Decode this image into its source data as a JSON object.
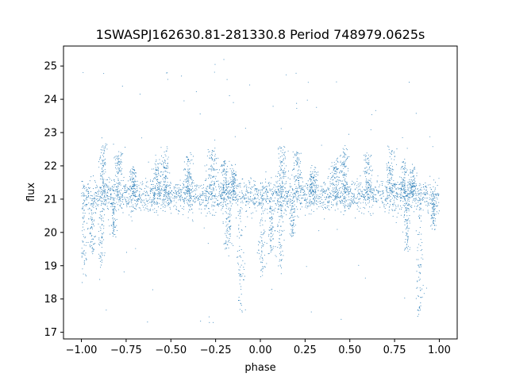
{
  "chart_data": {
    "type": "scatter",
    "title": "1SWASPJ162630.81-281330.8 Period 748979.0625s",
    "xlabel": "phase",
    "ylabel": "flux",
    "xlim": [
      -1.1,
      1.1
    ],
    "ylim": [
      16.8,
      25.6
    ],
    "x_ticks": [
      -1.0,
      -0.75,
      -0.5,
      -0.25,
      0.0,
      0.25,
      0.5,
      0.75,
      1.0
    ],
    "x_tick_labels": [
      "−1.00",
      "−0.75",
      "−0.50",
      "−0.25",
      "0.00",
      "0.25",
      "0.50",
      "0.75",
      "1.00"
    ],
    "y_ticks": [
      17,
      18,
      19,
      20,
      21,
      22,
      23,
      24,
      25
    ],
    "y_tick_labels": [
      "17",
      "18",
      "19",
      "20",
      "21",
      "22",
      "23",
      "24",
      "25"
    ],
    "point_color": "#1f77b4",
    "grid": false,
    "legend": "none",
    "phase_range": [
      -1.0,
      1.0
    ],
    "baseline_flux": 21.1,
    "baseline_scatter": 0.25,
    "series": [
      {
        "brightenings": [
          {
            "phase": -0.88,
            "peak": 22.6,
            "width": 0.012
          },
          {
            "phase": -0.79,
            "peak": 22.4,
            "width": 0.012
          },
          {
            "phase": -0.71,
            "peak": 21.9,
            "width": 0.012
          },
          {
            "phase": -0.58,
            "peak": 22.2,
            "width": 0.014
          },
          {
            "phase": -0.53,
            "peak": 22.5,
            "width": 0.01
          },
          {
            "phase": -0.4,
            "peak": 22.3,
            "width": 0.012
          },
          {
            "phase": -0.27,
            "peak": 22.5,
            "width": 0.014
          },
          {
            "phase": -0.2,
            "peak": 22.1,
            "width": 0.01
          },
          {
            "phase": -0.15,
            "peak": 21.9,
            "width": 0.01
          },
          {
            "phase": 0.12,
            "peak": 22.6,
            "width": 0.012
          },
          {
            "phase": 0.21,
            "peak": 22.4,
            "width": 0.012
          },
          {
            "phase": 0.29,
            "peak": 21.9,
            "width": 0.012
          },
          {
            "phase": 0.42,
            "peak": 22.2,
            "width": 0.014
          },
          {
            "phase": 0.47,
            "peak": 22.5,
            "width": 0.01
          },
          {
            "phase": 0.6,
            "peak": 22.3,
            "width": 0.012
          },
          {
            "phase": 0.73,
            "peak": 22.5,
            "width": 0.014
          },
          {
            "phase": 0.8,
            "peak": 22.1,
            "width": 0.01
          },
          {
            "phase": 0.85,
            "peak": 21.9,
            "width": 0.01
          }
        ],
        "dips": [
          {
            "phase": -0.99,
            "depth": 18.7,
            "width": 0.01
          },
          {
            "phase": -0.94,
            "depth": 19.4,
            "width": 0.01
          },
          {
            "phase": -0.89,
            "depth": 19.0,
            "width": 0.01
          },
          {
            "phase": -0.82,
            "depth": 19.9,
            "width": 0.008
          },
          {
            "phase": -0.18,
            "depth": 19.4,
            "width": 0.01
          },
          {
            "phase": -0.11,
            "depth": 17.6,
            "width": 0.01
          },
          {
            "phase": 0.01,
            "depth": 18.7,
            "width": 0.01
          },
          {
            "phase": 0.06,
            "depth": 19.4,
            "width": 0.01
          },
          {
            "phase": 0.11,
            "depth": 19.0,
            "width": 0.01
          },
          {
            "phase": 0.18,
            "depth": 19.9,
            "width": 0.008
          },
          {
            "phase": 0.82,
            "depth": 19.4,
            "width": 0.01
          },
          {
            "phase": 0.89,
            "depth": 17.6,
            "width": 0.01
          },
          {
            "phase": 0.97,
            "depth": 20.2,
            "width": 0.008
          }
        ]
      }
    ]
  }
}
